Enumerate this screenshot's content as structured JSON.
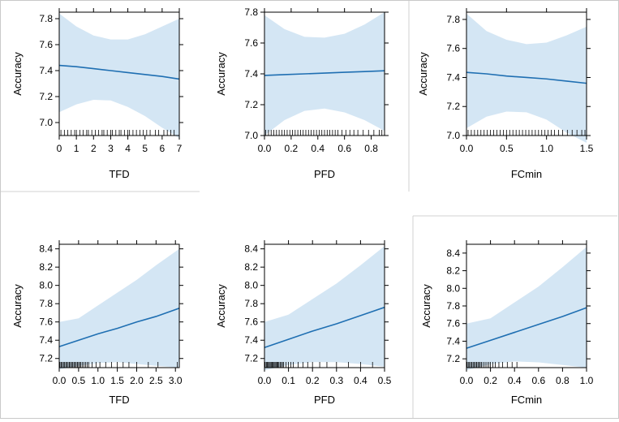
{
  "colors": {
    "line": "#1f6fb2",
    "band": "#d4e6f4",
    "frame": "#000000",
    "divider": "#d0d0d0"
  },
  "chart_data": [
    {
      "type": "line",
      "title": "",
      "xlabel": "TFD",
      "ylabel": "Accuracy",
      "xlim": [
        0,
        7
      ],
      "ylim": [
        6.9,
        7.85
      ],
      "xticks": [
        0,
        1,
        2,
        3,
        4,
        5,
        6,
        7
      ],
      "xtick_labels": [
        "0",
        "1",
        "2",
        "3",
        "4",
        "5",
        "6",
        "7"
      ],
      "yticks": [
        7.0,
        7.2,
        7.4,
        7.6,
        7.8
      ],
      "ytick_labels": [
        "7.0",
        "7.2",
        "7.4",
        "7.6",
        "7.8"
      ],
      "grid": false,
      "series": [
        {
          "name": "fit",
          "x": [
            0,
            1,
            2,
            3,
            4,
            5,
            6,
            7
          ],
          "values": [
            7.44,
            7.43,
            7.415,
            7.4,
            7.385,
            7.37,
            7.355,
            7.335
          ]
        },
        {
          "name": "lower",
          "x": [
            0,
            1,
            2,
            3,
            4,
            5,
            6,
            7
          ],
          "values": [
            7.08,
            7.14,
            7.175,
            7.17,
            7.12,
            7.05,
            6.96,
            6.88
          ]
        },
        {
          "name": "upper",
          "x": [
            0,
            1,
            2,
            3,
            4,
            5,
            6,
            7
          ],
          "values": [
            7.84,
            7.74,
            7.67,
            7.64,
            7.64,
            7.68,
            7.74,
            7.8
          ]
        }
      ],
      "rug": [
        0.1,
        0.3,
        0.5,
        0.7,
        0.9,
        1.0,
        1.2,
        1.4,
        1.6,
        1.7,
        1.9,
        2.1,
        2.3,
        2.5,
        2.6,
        2.8,
        3.0,
        3.1,
        3.3,
        3.5,
        3.6,
        3.8,
        4.0,
        4.1,
        4.3,
        4.5,
        4.7,
        4.9,
        5.1,
        5.3,
        5.6,
        5.8,
        6.1,
        6.3,
        6.5,
        6.7
      ]
    },
    {
      "type": "line",
      "title": "",
      "xlabel": "PFD",
      "ylabel": "Accuracy",
      "xlim": [
        0,
        0.9
      ],
      "ylim": [
        7.0,
        7.8
      ],
      "xticks": [
        0,
        0.2,
        0.4,
        0.6,
        0.8
      ],
      "xtick_labels": [
        "0.0",
        "0.2",
        "0.4",
        "0.6",
        "0.8"
      ],
      "yticks": [
        7.0,
        7.2,
        7.4,
        7.6,
        7.8
      ],
      "ytick_labels": [
        "7.0",
        "7.2",
        "7.4",
        "7.6",
        "7.8"
      ],
      "grid": false,
      "series": [
        {
          "name": "fit",
          "x": [
            0,
            0.15,
            0.3,
            0.45,
            0.6,
            0.75,
            0.9
          ],
          "values": [
            7.39,
            7.395,
            7.4,
            7.405,
            7.41,
            7.415,
            7.42
          ]
        },
        {
          "name": "lower",
          "x": [
            0,
            0.15,
            0.3,
            0.45,
            0.6,
            0.75,
            0.9
          ],
          "values": [
            7.0,
            7.1,
            7.16,
            7.175,
            7.15,
            7.1,
            7.03
          ]
        },
        {
          "name": "upper",
          "x": [
            0,
            0.15,
            0.3,
            0.45,
            0.6,
            0.75,
            0.9
          ],
          "values": [
            7.78,
            7.69,
            7.64,
            7.635,
            7.66,
            7.72,
            7.8
          ]
        }
      ],
      "rug": [
        0.01,
        0.03,
        0.05,
        0.07,
        0.09,
        0.11,
        0.13,
        0.15,
        0.17,
        0.19,
        0.21,
        0.23,
        0.25,
        0.27,
        0.29,
        0.31,
        0.33,
        0.35,
        0.37,
        0.39,
        0.41,
        0.43,
        0.45,
        0.47,
        0.49,
        0.51,
        0.53,
        0.55,
        0.58,
        0.61,
        0.64,
        0.67,
        0.7,
        0.74,
        0.78,
        0.82,
        0.86,
        0.88
      ]
    },
    {
      "type": "line",
      "title": "",
      "xlabel": "FCmin",
      "ylabel": "Accuracy",
      "xlim": [
        0,
        1.5
      ],
      "ylim": [
        7.0,
        7.85
      ],
      "xticks": [
        0,
        0.5,
        1.0,
        1.5
      ],
      "xtick_labels": [
        "0.0",
        "0.5",
        "1.0",
        "1.5"
      ],
      "yticks": [
        7.0,
        7.2,
        7.4,
        7.6,
        7.8
      ],
      "ytick_labels": [
        "7.0",
        "7.2",
        "7.4",
        "7.6",
        "7.8"
      ],
      "grid": false,
      "series": [
        {
          "name": "fit",
          "x": [
            0,
            0.25,
            0.5,
            0.75,
            1.0,
            1.25,
            1.5
          ],
          "values": [
            7.435,
            7.425,
            7.41,
            7.4,
            7.39,
            7.375,
            7.36
          ]
        },
        {
          "name": "lower",
          "x": [
            0,
            0.25,
            0.5,
            0.75,
            1.0,
            1.25,
            1.5
          ],
          "values": [
            7.05,
            7.13,
            7.165,
            7.16,
            7.11,
            7.02,
            6.95
          ]
        },
        {
          "name": "upper",
          "x": [
            0,
            0.25,
            0.5,
            0.75,
            1.0,
            1.25,
            1.5
          ],
          "values": [
            7.84,
            7.72,
            7.66,
            7.63,
            7.64,
            7.69,
            7.75
          ]
        }
      ],
      "rug": [
        0.02,
        0.06,
        0.1,
        0.14,
        0.18,
        0.22,
        0.26,
        0.3,
        0.34,
        0.38,
        0.42,
        0.46,
        0.5,
        0.54,
        0.58,
        0.62,
        0.66,
        0.7,
        0.74,
        0.78,
        0.82,
        0.86,
        0.9,
        0.94,
        0.98,
        1.02,
        1.06,
        1.1,
        1.15,
        1.2,
        1.26,
        1.32,
        1.38,
        1.44,
        1.48
      ]
    },
    {
      "type": "line",
      "title": "",
      "xlabel": "TFD",
      "ylabel": "Accuracy",
      "xlim": [
        0,
        3.1
      ],
      "ylim": [
        7.1,
        8.45
      ],
      "xticks": [
        0,
        0.5,
        1.0,
        1.5,
        2.0,
        2.5,
        3.0
      ],
      "xtick_labels": [
        "0.0",
        "0.5",
        "1.0",
        "1.5",
        "2.0",
        "2.5",
        "3.0"
      ],
      "yticks": [
        7.2,
        7.4,
        7.6,
        7.8,
        8.0,
        8.2,
        8.4
      ],
      "ytick_labels": [
        "7.2",
        "7.4",
        "7.6",
        "7.8",
        "8.0",
        "8.2",
        "8.4"
      ],
      "grid": false,
      "series": [
        {
          "name": "fit",
          "x": [
            0,
            0.5,
            1.0,
            1.5,
            2.0,
            2.5,
            3.1
          ],
          "values": [
            7.33,
            7.4,
            7.47,
            7.53,
            7.6,
            7.66,
            7.75
          ]
        },
        {
          "name": "lower",
          "x": [
            0,
            0.5,
            1.0,
            1.5,
            2.0,
            2.5,
            3.1
          ],
          "values": [
            7.08,
            7.12,
            7.15,
            7.16,
            7.14,
            7.12,
            7.1
          ]
        },
        {
          "name": "upper",
          "x": [
            0,
            0.5,
            1.0,
            1.5,
            2.0,
            2.5,
            3.1
          ],
          "values": [
            7.6,
            7.64,
            7.78,
            7.92,
            8.06,
            8.22,
            8.4
          ]
        }
      ],
      "rug": [
        0.02,
        0.05,
        0.08,
        0.11,
        0.14,
        0.17,
        0.2,
        0.23,
        0.26,
        0.29,
        0.32,
        0.35,
        0.38,
        0.41,
        0.44,
        0.47,
        0.5,
        0.53,
        0.56,
        0.6,
        0.64,
        0.68,
        0.72,
        0.76,
        0.85,
        0.95,
        1.05,
        1.2,
        1.35,
        1.5,
        1.65,
        1.8,
        2.0,
        2.3,
        2.55,
        3.05
      ]
    },
    {
      "type": "line",
      "title": "",
      "xlabel": "PFD",
      "ylabel": "Accuracy",
      "xlim": [
        0,
        0.5
      ],
      "ylim": [
        7.1,
        8.45
      ],
      "xticks": [
        0,
        0.1,
        0.2,
        0.3,
        0.4,
        0.5
      ],
      "xtick_labels": [
        "0.0",
        "0.1",
        "0.2",
        "0.3",
        "0.4",
        "0.5"
      ],
      "yticks": [
        7.2,
        7.4,
        7.6,
        7.8,
        8.0,
        8.2,
        8.4
      ],
      "ytick_labels": [
        "7.2",
        "7.4",
        "7.6",
        "7.8",
        "8.0",
        "8.2",
        "8.4"
      ],
      "grid": false,
      "series": [
        {
          "name": "fit",
          "x": [
            0,
            0.1,
            0.2,
            0.3,
            0.4,
            0.5
          ],
          "values": [
            7.32,
            7.41,
            7.5,
            7.58,
            7.67,
            7.76
          ]
        },
        {
          "name": "lower",
          "x": [
            0,
            0.1,
            0.2,
            0.3,
            0.4,
            0.5
          ],
          "values": [
            7.07,
            7.13,
            7.16,
            7.16,
            7.14,
            7.11
          ]
        },
        {
          "name": "upper",
          "x": [
            0,
            0.1,
            0.2,
            0.3,
            0.4,
            0.5
          ],
          "values": [
            7.6,
            7.68,
            7.85,
            8.02,
            8.22,
            8.43
          ]
        }
      ],
      "rug": [
        0.003,
        0.008,
        0.012,
        0.016,
        0.02,
        0.024,
        0.028,
        0.032,
        0.036,
        0.04,
        0.044,
        0.048,
        0.052,
        0.056,
        0.06,
        0.065,
        0.07,
        0.075,
        0.08,
        0.09,
        0.1,
        0.11,
        0.12,
        0.14,
        0.16,
        0.18,
        0.2,
        0.23,
        0.26,
        0.3,
        0.35,
        0.4,
        0.45
      ]
    },
    {
      "type": "line",
      "title": "",
      "xlabel": "FCmin",
      "ylabel": "Accuracy",
      "xlim": [
        0,
        1.0
      ],
      "ylim": [
        7.1,
        8.5
      ],
      "xticks": [
        0,
        0.2,
        0.4,
        0.6,
        0.8,
        1.0
      ],
      "xtick_labels": [
        "0.0",
        "0.2",
        "0.4",
        "0.6",
        "0.8",
        "1.0"
      ],
      "yticks": [
        7.2,
        7.4,
        7.6,
        7.8,
        8.0,
        8.2,
        8.4
      ],
      "ytick_labels": [
        "7.2",
        "7.4",
        "7.6",
        "7.8",
        "8.0",
        "8.2",
        "8.4"
      ],
      "grid": false,
      "series": [
        {
          "name": "fit",
          "x": [
            0,
            0.2,
            0.4,
            0.6,
            0.8,
            1.0
          ],
          "values": [
            7.32,
            7.41,
            7.5,
            7.59,
            7.68,
            7.78
          ]
        },
        {
          "name": "lower",
          "x": [
            0,
            0.2,
            0.4,
            0.6,
            0.8,
            1.0
          ],
          "values": [
            7.07,
            7.14,
            7.17,
            7.16,
            7.13,
            7.1
          ]
        },
        {
          "name": "upper",
          "x": [
            0,
            0.2,
            0.4,
            0.6,
            0.8,
            1.0
          ],
          "values": [
            7.6,
            7.66,
            7.84,
            8.02,
            8.24,
            8.47
          ]
        }
      ],
      "rug": [
        0.005,
        0.015,
        0.025,
        0.035,
        0.045,
        0.055,
        0.065,
        0.075,
        0.085,
        0.095,
        0.105,
        0.115,
        0.125,
        0.14,
        0.155,
        0.17,
        0.185,
        0.2,
        0.22,
        0.24,
        0.27,
        0.3,
        0.34,
        0.38,
        0.42
      ]
    }
  ]
}
